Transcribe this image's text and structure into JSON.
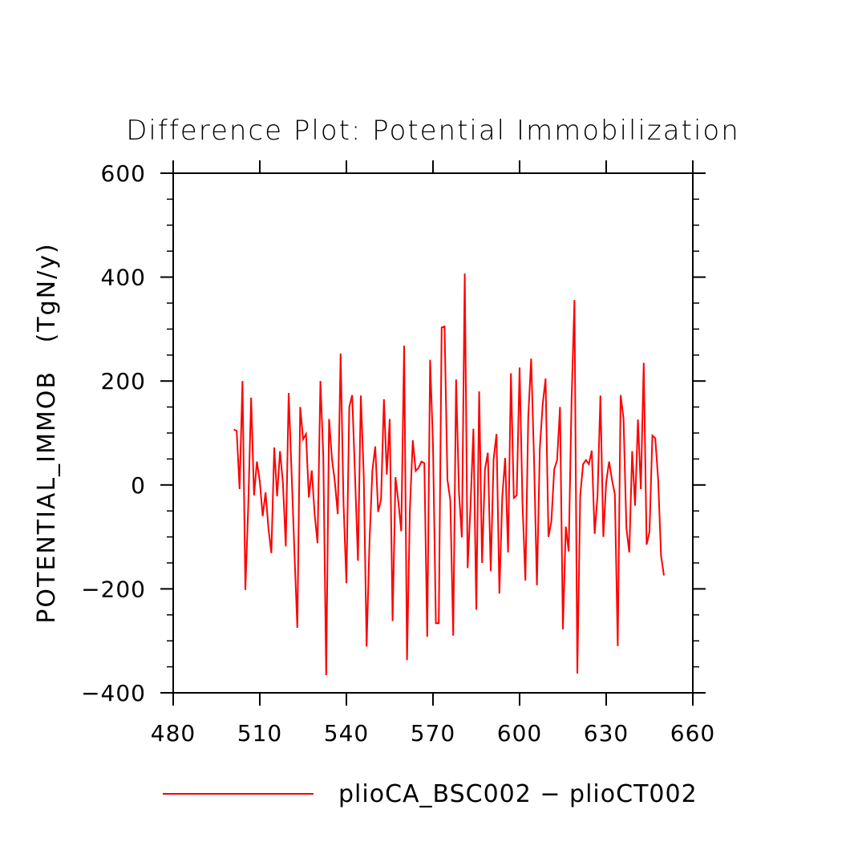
{
  "chart_data": {
    "type": "line",
    "title": "Difference Plot: Potential Immobilization",
    "xlabel": "",
    "ylabel": "POTENTIAL_IMMOB   (TgN/y)",
    "xlim": [
      480,
      660
    ],
    "ylim": [
      -400,
      600
    ],
    "xticks": [
      480,
      510,
      540,
      570,
      600,
      630,
      660
    ],
    "yticks": [
      -400,
      -200,
      0,
      200,
      400,
      600
    ],
    "xtick_labels": [
      "480",
      "510",
      "540",
      "570",
      "600",
      "630",
      "660"
    ],
    "ytick_labels": [
      "−400",
      "−200",
      "0",
      "200",
      "400",
      "600"
    ],
    "legend_position": "bottom",
    "series": [
      {
        "name": "plioCA_BSC002 − plioCT002",
        "color": "#ff0000",
        "x": [
          501,
          502,
          503,
          504,
          505,
          506,
          507,
          508,
          509,
          510,
          511,
          512,
          513,
          514,
          515,
          516,
          517,
          518,
          519,
          520,
          521,
          522,
          523,
          524,
          525,
          526,
          527,
          528,
          529,
          530,
          531,
          532,
          533,
          534,
          535,
          536,
          537,
          538,
          539,
          540,
          541,
          542,
          543,
          544,
          545,
          546,
          547,
          548,
          549,
          550,
          551,
          552,
          553,
          554,
          555,
          556,
          557,
          558,
          559,
          560,
          561,
          562,
          563,
          564,
          565,
          566,
          567,
          568,
          569,
          570,
          571,
          572,
          573,
          574,
          575,
          576,
          577,
          578,
          579,
          580,
          581,
          582,
          583,
          584,
          585,
          586,
          587,
          588,
          589,
          590,
          591,
          592,
          593,
          594,
          595,
          596,
          597,
          598,
          599,
          600,
          601,
          602,
          603,
          604,
          605,
          606,
          607,
          608,
          609,
          610,
          611,
          612,
          613,
          614,
          615,
          616,
          617,
          618,
          619,
          620,
          621,
          622,
          623,
          624,
          625,
          626,
          627,
          628,
          629,
          630,
          631,
          632,
          633,
          634,
          635,
          636,
          637,
          638,
          639,
          640,
          641,
          642,
          643,
          644,
          645,
          646,
          647,
          648,
          649,
          650
        ],
        "y": [
          107,
          104,
          -8,
          200,
          -202,
          -40,
          168,
          -20,
          45,
          7,
          -60,
          -14,
          -84,
          -131,
          72,
          -22,
          65,
          5,
          -118,
          177,
          25,
          -130,
          -275,
          150,
          88,
          98,
          -24,
          28,
          -56,
          -112,
          200,
          55,
          -366,
          127,
          50,
          6,
          -56,
          253,
          -35,
          -189,
          150,
          173,
          16,
          -146,
          172,
          20,
          -311,
          -110,
          28,
          74,
          -52,
          -28,
          165,
          20,
          127,
          -262,
          15,
          -32,
          -89,
          268,
          -337,
          -45,
          86,
          27,
          33,
          45,
          42,
          -292,
          241,
          77,
          -266,
          -266,
          303,
          305,
          10,
          -30,
          -290,
          203,
          -15,
          -101,
          407,
          -160,
          -40,
          108,
          -240,
          180,
          -150,
          30,
          62,
          -166,
          50,
          98,
          -209,
          -23,
          52,
          -130,
          215,
          -25,
          -20,
          226,
          -35,
          -184,
          131,
          243,
          50,
          -193,
          70,
          155,
          205,
          -100,
          -70,
          30,
          48,
          150,
          -278,
          -80,
          -128,
          162,
          356,
          -363,
          -20,
          40,
          48,
          40,
          66,
          -94,
          -20,
          172,
          -100,
          5,
          45,
          10,
          -18,
          -310,
          173,
          128,
          -83,
          -130,
          65,
          -40,
          126,
          -8,
          235,
          -115,
          -90,
          95,
          90,
          10,
          -136,
          -174
        ]
      }
    ]
  }
}
